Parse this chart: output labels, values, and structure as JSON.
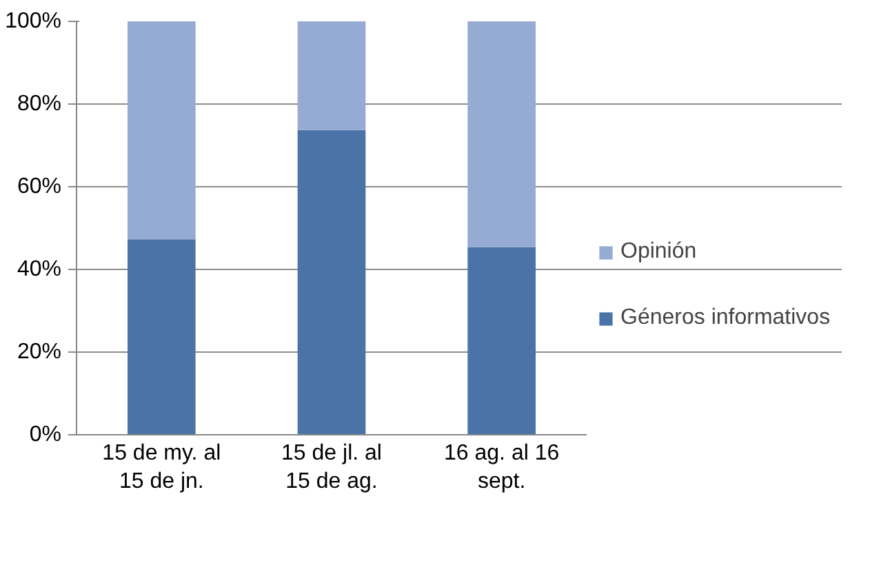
{
  "chart_data": {
    "type": "bar",
    "stacked": true,
    "categories": [
      "15 de my. al 15 de jn.",
      "15 de jl. al 15 de ag.",
      "16 ag. al 16 sept."
    ],
    "series": [
      {
        "name": "Géneros informativos",
        "color": "#4a74a8",
        "values": [
          47.3,
          73.7,
          45.4
        ]
      },
      {
        "name": "Opinión",
        "color": "#95abd4",
        "values": [
          52.7,
          26.3,
          54.6
        ]
      }
    ],
    "ylim": [
      0,
      100
    ],
    "yticks": [
      {
        "value": 0,
        "label": "0%"
      },
      {
        "value": 20,
        "label": "20%"
      },
      {
        "value": 40,
        "label": "40%"
      },
      {
        "value": 60,
        "label": "60%"
      },
      {
        "value": 80,
        "label": "80%"
      },
      {
        "value": 100,
        "label": "100%"
      }
    ],
    "grid": "y",
    "legend": "right"
  }
}
